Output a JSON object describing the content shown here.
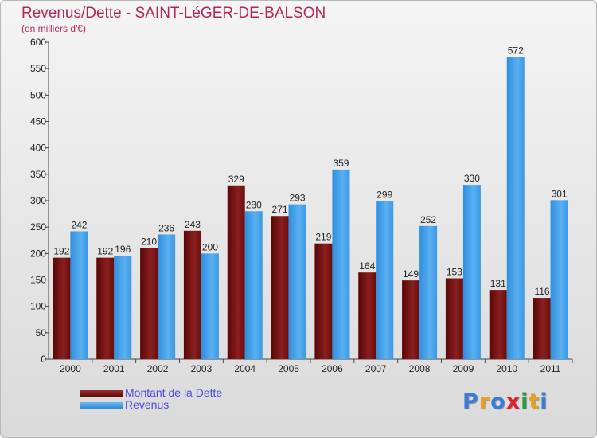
{
  "title": "Revenus/Dette - SAINT-LéGER-DE-BALSON",
  "subtitle": "(en milliers d'€)",
  "colors": {
    "dette": "#6e0d0d",
    "revenus": "#3a9be8",
    "title": "#b0285a",
    "legend_text": "#4a4ae0"
  },
  "logo": {
    "letters": [
      "P",
      "r",
      "o",
      "x",
      "i",
      "t",
      "i"
    ],
    "colors": [
      "#3a7bd5",
      "#e8a020",
      "#3a7bd5",
      "#d8242a",
      "#2a9c3a",
      "#e8a020",
      "#3a7bd5"
    ]
  },
  "chart_data": {
    "type": "bar",
    "categories": [
      "2000",
      "2001",
      "2002",
      "2003",
      "2004",
      "2005",
      "2006",
      "2007",
      "2008",
      "2009",
      "2010",
      "2011"
    ],
    "series": [
      {
        "name": "Montant de la Dette",
        "values": [
          192,
          192,
          210,
          243,
          329,
          271,
          219,
          164,
          149,
          153,
          131,
          116
        ]
      },
      {
        "name": "Revenus",
        "values": [
          242,
          196,
          236,
          200,
          280,
          293,
          359,
          299,
          252,
          330,
          572,
          301
        ]
      }
    ],
    "ylim": [
      0,
      600
    ],
    "yticks": [
      0,
      50,
      100,
      150,
      200,
      250,
      300,
      350,
      400,
      450,
      500,
      550,
      600
    ],
    "legend": [
      "Montant de la Dette",
      "Revenus"
    ],
    "legend_position": "bottom-left",
    "grid": false
  }
}
